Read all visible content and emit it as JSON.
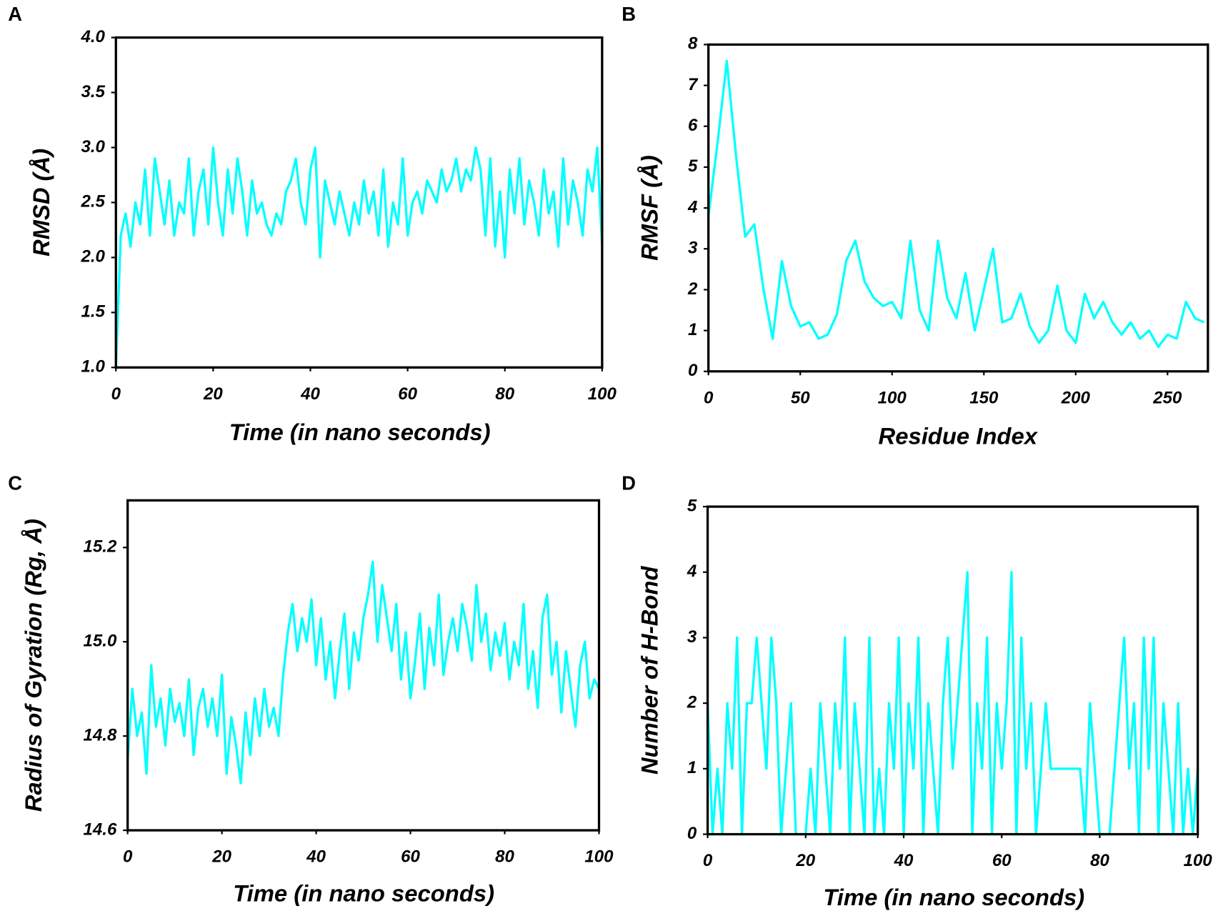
{
  "chart_data": [
    {
      "type": "line",
      "panel": "A",
      "xlabel": "Time (in nano seconds)",
      "ylabel": "RMSD (Å)",
      "xlim": [
        0,
        100
      ],
      "xticks": [
        0,
        20,
        40,
        60,
        80,
        100
      ],
      "ylim": [
        1,
        4
      ],
      "yticks": [
        {
          "value": 1,
          "label": "1.0"
        },
        1.5,
        {
          "value": 2,
          "label": "2.0"
        },
        2.5,
        {
          "value": 3,
          "label": "3.0"
        },
        3.5,
        {
          "value": 4,
          "label": "4.0"
        }
      ],
      "series": [
        {
          "name": null,
          "color": "#00ffff",
          "x": [
            0,
            1,
            2,
            3,
            4,
            5,
            6,
            7,
            8,
            9,
            10,
            11,
            12,
            13,
            14,
            15,
            16,
            17,
            18,
            19,
            20,
            21,
            22,
            23,
            24,
            25,
            26,
            27,
            28,
            29,
            30,
            31,
            32,
            33,
            34,
            35,
            36,
            37,
            38,
            39,
            40,
            41,
            42,
            43,
            44,
            45,
            46,
            47,
            48,
            49,
            50,
            51,
            52,
            53,
            54,
            55,
            56,
            57,
            58,
            59,
            60,
            61,
            62,
            63,
            64,
            65,
            66,
            67,
            68,
            69,
            70,
            71,
            72,
            73,
            74,
            75,
            76,
            77,
            78,
            79,
            80,
            81,
            82,
            83,
            84,
            85,
            86,
            87,
            88,
            89,
            90,
            91,
            92,
            93,
            94,
            95,
            96,
            97,
            98,
            99,
            100
          ],
          "values": [
            1.0,
            2.2,
            2.4,
            2.1,
            2.5,
            2.3,
            2.8,
            2.2,
            2.9,
            2.6,
            2.3,
            2.7,
            2.2,
            2.5,
            2.4,
            2.9,
            2.2,
            2.6,
            2.8,
            2.3,
            3.0,
            2.5,
            2.2,
            2.8,
            2.4,
            2.9,
            2.6,
            2.2,
            2.7,
            2.4,
            2.5,
            2.3,
            2.2,
            2.4,
            2.3,
            2.6,
            2.7,
            2.9,
            2.5,
            2.3,
            2.8,
            3.0,
            2.0,
            2.7,
            2.5,
            2.3,
            2.6,
            2.4,
            2.2,
            2.5,
            2.3,
            2.7,
            2.4,
            2.6,
            2.2,
            2.8,
            2.1,
            2.5,
            2.3,
            2.9,
            2.2,
            2.5,
            2.6,
            2.4,
            2.7,
            2.6,
            2.5,
            2.8,
            2.6,
            2.7,
            2.9,
            2.6,
            2.8,
            2.7,
            3.0,
            2.8,
            2.2,
            2.9,
            2.1,
            2.6,
            2.0,
            2.8,
            2.4,
            2.9,
            2.3,
            2.7,
            2.5,
            2.2,
            2.8,
            2.4,
            2.6,
            2.1,
            2.9,
            2.3,
            2.7,
            2.5,
            2.2,
            2.8,
            2.6,
            3.0,
            2.1
          ]
        }
      ]
    },
    {
      "type": "line",
      "panel": "B",
      "xlabel": "Residue Index",
      "ylabel": "RMSF (Å)",
      "xlim": [
        0,
        272
      ],
      "xticks": [
        0,
        50,
        100,
        150,
        200,
        250
      ],
      "ylim": [
        0,
        8
      ],
      "yticks": [
        0,
        1,
        2,
        3,
        4,
        5,
        6,
        7,
        8
      ],
      "series": [
        {
          "name": null,
          "color": "#00ffff",
          "x": [
            0,
            5,
            10,
            15,
            20,
            25,
            30,
            35,
            40,
            45,
            50,
            55,
            60,
            65,
            70,
            75,
            80,
            85,
            90,
            95,
            100,
            105,
            110,
            115,
            120,
            125,
            130,
            135,
            140,
            145,
            150,
            155,
            160,
            165,
            170,
            175,
            180,
            185,
            190,
            195,
            200,
            205,
            210,
            215,
            220,
            225,
            230,
            235,
            240,
            245,
            250,
            255,
            260,
            265,
            270
          ],
          "values": [
            3.8,
            5.6,
            7.6,
            5.3,
            3.3,
            3.6,
            2.0,
            0.8,
            2.7,
            1.6,
            1.1,
            1.2,
            0.8,
            0.9,
            1.4,
            2.7,
            3.2,
            2.2,
            1.8,
            1.6,
            1.7,
            1.3,
            3.2,
            1.5,
            1.0,
            3.2,
            1.8,
            1.3,
            2.4,
            1.0,
            2.0,
            3.0,
            1.2,
            1.3,
            1.9,
            1.1,
            0.7,
            1.0,
            2.1,
            1.0,
            0.7,
            1.9,
            1.3,
            1.7,
            1.2,
            0.9,
            1.2,
            0.8,
            1.0,
            0.6,
            0.9,
            0.8,
            1.7,
            1.3,
            1.2
          ]
        }
      ]
    },
    {
      "type": "line",
      "panel": "C",
      "xlabel": "Time (in nano seconds)",
      "ylabel": "Radius of Gyration (Rg, Å)",
      "xlim": [
        0,
        100
      ],
      "xticks": [
        0,
        20,
        40,
        60,
        80,
        100
      ],
      "ylim": [
        14.6,
        15.3
      ],
      "yticks": [
        14.6,
        14.8,
        {
          "value": 15,
          "label": "15.0"
        },
        15.2
      ],
      "series": [
        {
          "name": null,
          "color": "#00ffff",
          "x": [
            0,
            1,
            2,
            3,
            4,
            5,
            6,
            7,
            8,
            9,
            10,
            11,
            12,
            13,
            14,
            15,
            16,
            17,
            18,
            19,
            20,
            21,
            22,
            23,
            24,
            25,
            26,
            27,
            28,
            29,
            30,
            31,
            32,
            33,
            34,
            35,
            36,
            37,
            38,
            39,
            40,
            41,
            42,
            43,
            44,
            45,
            46,
            47,
            48,
            49,
            50,
            51,
            52,
            53,
            54,
            55,
            56,
            57,
            58,
            59,
            60,
            61,
            62,
            63,
            64,
            65,
            66,
            67,
            68,
            69,
            70,
            71,
            72,
            73,
            74,
            75,
            76,
            77,
            78,
            79,
            80,
            81,
            82,
            83,
            84,
            85,
            86,
            87,
            88,
            89,
            90,
            91,
            92,
            93,
            94,
            95,
            96,
            97,
            98,
            99,
            100
          ],
          "values": [
            14.75,
            14.9,
            14.8,
            14.85,
            14.72,
            14.95,
            14.82,
            14.88,
            14.78,
            14.9,
            14.83,
            14.87,
            14.8,
            14.92,
            14.76,
            14.86,
            14.9,
            14.82,
            14.88,
            14.8,
            14.93,
            14.72,
            14.84,
            14.78,
            14.7,
            14.85,
            14.76,
            14.88,
            14.8,
            14.9,
            14.82,
            14.86,
            14.8,
            14.93,
            15.02,
            15.08,
            14.98,
            15.05,
            15.0,
            15.09,
            14.95,
            15.05,
            14.92,
            15.0,
            14.88,
            14.98,
            15.06,
            14.9,
            15.02,
            14.96,
            15.05,
            15.1,
            15.17,
            15.0,
            15.12,
            15.05,
            14.98,
            15.08,
            14.92,
            15.02,
            14.88,
            14.96,
            15.06,
            14.9,
            15.03,
            14.95,
            15.1,
            14.93,
            15.0,
            15.05,
            14.98,
            15.08,
            15.03,
            14.96,
            15.12,
            15.0,
            15.06,
            14.94,
            15.02,
            14.97,
            15.04,
            14.92,
            15.0,
            14.95,
            15.08,
            14.9,
            14.98,
            14.86,
            15.05,
            15.1,
            14.93,
            15.0,
            14.85,
            14.98,
            14.9,
            14.82,
            14.95,
            15.0,
            14.88,
            14.92,
            14.9
          ]
        }
      ]
    },
    {
      "type": "line",
      "panel": "D",
      "xlabel": "Time (in nano seconds)",
      "ylabel": "Number of H-Bond",
      "xlim": [
        0,
        100
      ],
      "xticks": [
        0,
        20,
        40,
        60,
        80,
        100
      ],
      "ylim": [
        0,
        5
      ],
      "yticks": [
        0,
        1,
        2,
        3,
        4,
        5
      ],
      "series": [
        {
          "name": null,
          "color": "#00ffff",
          "x": [
            0,
            1,
            2,
            3,
            4,
            5,
            6,
            7,
            8,
            9,
            10,
            11,
            12,
            13,
            14,
            15,
            16,
            17,
            18,
            19,
            20,
            21,
            22,
            23,
            24,
            25,
            26,
            27,
            28,
            29,
            30,
            31,
            32,
            33,
            34,
            35,
            36,
            37,
            38,
            39,
            40,
            41,
            42,
            43,
            44,
            45,
            46,
            47,
            48,
            49,
            50,
            51,
            52,
            53,
            54,
            55,
            56,
            57,
            58,
            59,
            60,
            61,
            62,
            63,
            64,
            65,
            66,
            67,
            68,
            69,
            70,
            71,
            72,
            73,
            74,
            75,
            76,
            77,
            78,
            79,
            80,
            81,
            82,
            83,
            84,
            85,
            86,
            87,
            88,
            89,
            90,
            91,
            92,
            93,
            94,
            95,
            96,
            97,
            98,
            99,
            100
          ],
          "values": [
            2,
            0,
            1,
            0,
            2,
            1,
            3,
            0,
            2,
            2,
            3,
            2,
            1,
            3,
            2,
            0,
            1,
            2,
            0,
            0,
            0,
            1,
            0,
            2,
            1,
            0,
            2,
            1,
            3,
            0,
            2,
            1,
            0,
            3,
            0,
            1,
            0,
            2,
            1,
            3,
            0,
            2,
            1,
            3,
            0,
            2,
            1,
            0,
            2,
            3,
            1,
            2,
            3,
            4,
            0,
            2,
            1,
            3,
            0,
            2,
            1,
            2,
            4,
            0,
            3,
            1,
            2,
            0,
            1,
            2,
            1,
            1,
            1,
            1,
            1,
            1,
            1,
            0,
            2,
            1,
            0,
            0,
            0,
            1,
            2,
            3,
            1,
            2,
            0,
            3,
            1,
            3,
            0,
            2,
            1,
            0,
            2,
            0,
            1,
            0,
            1
          ]
        }
      ]
    }
  ]
}
